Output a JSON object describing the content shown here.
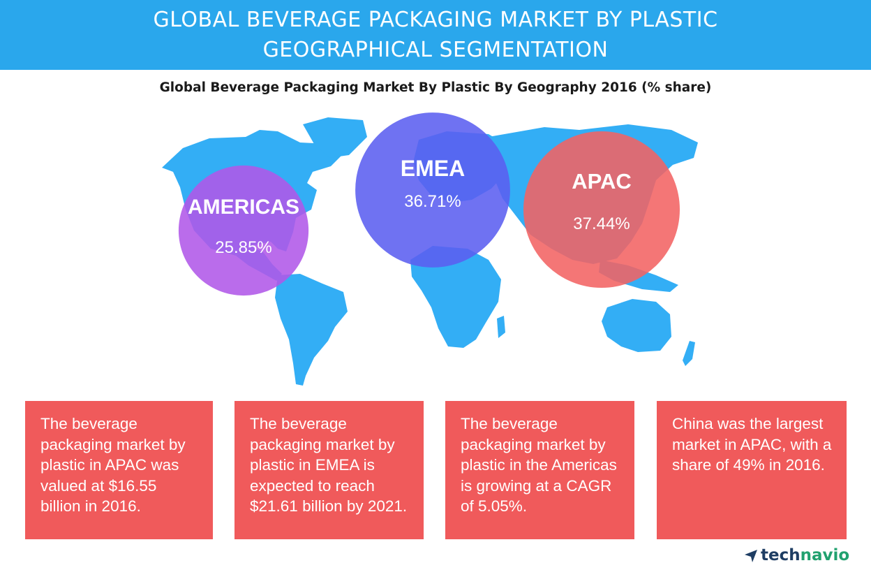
{
  "header": {
    "title_line1": "GLOBAL BEVERAGE PACKAGING MARKET BY PLASTIC",
    "title_line2": "GEOGRAPHICAL SEGMENTATION"
  },
  "chart_data": {
    "type": "pie",
    "title": "Global Beverage Packaging Market By Plastic By Geography 2016 (% share)",
    "categories": [
      "AMERICAS",
      "EMEA",
      "APAC"
    ],
    "values": [
      25.85,
      36.71,
      37.44
    ],
    "value_labels": [
      "25.85%",
      "36.71%",
      "37.44%"
    ],
    "colors": [
      "#b158e8",
      "#5b5ff0",
      "#f26363"
    ]
  },
  "facts": [
    "The beverage packaging market by plastic in APAC was valued at $16.55 billion in 2016.",
    "The beverage packaging market by plastic in EMEA is expected to reach $21.61 billion by 2021.",
    "The beverage packaging market by plastic in the Americas is growing at a CAGR of 5.05%.",
    "China was the largest market in APAC, with a share of 49% in 2016."
  ],
  "brand": {
    "name_part1": "tech",
    "name_part2": "navio"
  },
  "colors": {
    "banner": "#2aa7ec",
    "map": "#33aef5",
    "fact_box": "#f05a5b"
  }
}
